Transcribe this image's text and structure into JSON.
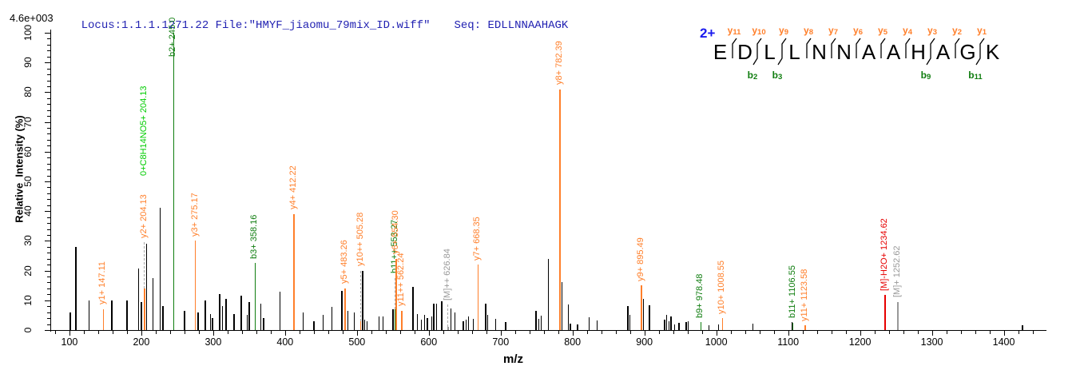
{
  "header": {
    "intensity_scale": "4.6e+003",
    "locus_line": "Locus:1.1.1.1271.22 File:\"HMYF_jiaomu_79mix_ID.wiff\"",
    "seq_line": "Seq: EDLLNNAAHAGK",
    "text_color": "#2222b2"
  },
  "peptide": {
    "charge": "2+",
    "residues": [
      "E",
      "D",
      "L",
      "L",
      "N",
      "N",
      "A",
      "A",
      "H",
      "A",
      "G",
      "K"
    ],
    "y_ion_labels": [
      "y11",
      "y10",
      "y9",
      "y8",
      "y7",
      "y6",
      "y5",
      "y4",
      "y3",
      "y2",
      "y1"
    ],
    "b_ion_labels": {
      "2": "b2",
      "3": "b3",
      "9": "b9",
      "11": "b11"
    },
    "colors": {
      "charge": "#1a1aee",
      "y": "#ff7f2a",
      "b": "#0f7d0f",
      "letter": "#000000"
    }
  },
  "chart_data": {
    "type": "bar",
    "subtype": "ms2-spectrum",
    "title": "",
    "xlabel": "m/z",
    "ylabel": "Relative  Intensity (%)",
    "x_range": [
      74.5,
      1459
    ],
    "y_range": [
      0,
      100
    ],
    "x_major_ticks": [
      100,
      200,
      300,
      400,
      500,
      600,
      700,
      800,
      900,
      1000,
      1100,
      1200,
      1300,
      1400
    ],
    "x_minor_step": 20,
    "y_major_ticks": [
      0,
      10,
      20,
      30,
      40,
      50,
      60,
      70,
      80,
      90,
      100
    ],
    "y_minor_step": 2,
    "grid": false,
    "colors": {
      "y": "#ff7f2a",
      "b": "#0f7d0f",
      "imm": "#00cc00",
      "precursor": "#999999",
      "loss": "#e60000",
      "peak": "#000000",
      "dash": "#aaaaaa"
    },
    "annotated_peaks": [
      {
        "label": "y1+ 147.11",
        "mz": 147.11,
        "intensity": 7,
        "type": "y"
      },
      {
        "label": "y2+ 204.13",
        "mz": 204.13,
        "intensity": 14,
        "dash_to": 29.5,
        "type": "y"
      },
      {
        "label": "0+C8H14NO5+ 204.13",
        "mz": 204.13,
        "intensity": 0,
        "label_at": 52,
        "no_line": true,
        "type": "imm"
      },
      {
        "label": "b2+ 245.0",
        "mz": 245.0,
        "intensity": 100,
        "label_at": 92,
        "type": "b"
      },
      {
        "label": "y3+ 275.17",
        "mz": 275.17,
        "intensity": 30,
        "type": "y"
      },
      {
        "label": "b3+ 358.16",
        "mz": 358.16,
        "intensity": 22.5,
        "type": "b"
      },
      {
        "label": "y4+ 412.22",
        "mz": 412.22,
        "intensity": 39,
        "type": "y"
      },
      {
        "label": "y5+ 483.26",
        "mz": 483.26,
        "intensity": 14,
        "type": "y"
      },
      {
        "label": "y10++ 505.28",
        "mz": 505.28,
        "intensity": 3,
        "dash_to": 20,
        "type": "y"
      },
      {
        "label": "b11++ 553.27",
        "mz": 553.27,
        "intensity": 7,
        "dash_to": 17.5,
        "type": "b"
      },
      {
        "label": "y6+ 554.30",
        "mz": 554.3,
        "intensity": 24,
        "type": "y"
      },
      {
        "label": "y11++ 562.24",
        "mz": 562.24,
        "intensity": 6.5,
        "type": "y"
      },
      {
        "label": "[M]++ 626.84",
        "mz": 626.84,
        "intensity": 1,
        "dash_to": 8.5,
        "type": "precursor"
      },
      {
        "label": "y7+ 668.35",
        "mz": 668.35,
        "intensity": 22,
        "type": "y"
      },
      {
        "label": "y8+ 782.39",
        "mz": 782.39,
        "intensity": 81,
        "type": "y"
      },
      {
        "label": "y9+ 895.49",
        "mz": 895.49,
        "intensity": 15,
        "type": "y"
      },
      {
        "label": "b9+ 978.48",
        "mz": 978.48,
        "intensity": 2.6,
        "type": "b"
      },
      {
        "label": "y10+ 1008.55",
        "mz": 1008.55,
        "intensity": 4,
        "type": "y"
      },
      {
        "label": "b11+ 1106.55",
        "mz": 1106.55,
        "intensity": 2.5,
        "type": "b"
      },
      {
        "label": "y11+ 1123.58",
        "mz": 1123.58,
        "intensity": 1.5,
        "type": "y"
      },
      {
        "label": "[M]-H2O+ 1234.62",
        "mz": 1234.62,
        "intensity": 11.7,
        "type": "loss"
      },
      {
        "label": "[M]+ 1252.62",
        "mz": 1252.62,
        "intensity": 9.4,
        "type": "precursor"
      }
    ],
    "peaks": [
      [
        101,
        6
      ],
      [
        109,
        28
      ],
      [
        127,
        10
      ],
      [
        159,
        10
      ],
      [
        180,
        10
      ],
      [
        196,
        20.7
      ],
      [
        200,
        9.5
      ],
      [
        207,
        29
      ],
      [
        216,
        17.5
      ],
      [
        226,
        41
      ],
      [
        230,
        8
      ],
      [
        260,
        6.5
      ],
      [
        279,
        6
      ],
      [
        289,
        10
      ],
      [
        296,
        5.3
      ],
      [
        299,
        4
      ],
      [
        309,
        12
      ],
      [
        313,
        8
      ],
      [
        318,
        10.5
      ],
      [
        329,
        5.5
      ],
      [
        339,
        11.5
      ],
      [
        347,
        5
      ],
      [
        350,
        9.5
      ],
      [
        366,
        9
      ],
      [
        370,
        4
      ],
      [
        393,
        12.8
      ],
      [
        425,
        6
      ],
      [
        440,
        3
      ],
      [
        453,
        5.2
      ],
      [
        465,
        7.7
      ],
      [
        479,
        13.2
      ],
      [
        487,
        6.5
      ],
      [
        496,
        6
      ],
      [
        508,
        20
      ],
      [
        511,
        3.5
      ],
      [
        514,
        3
      ],
      [
        531,
        4.5
      ],
      [
        536,
        4.5
      ],
      [
        550,
        7
      ],
      [
        578,
        14.5
      ],
      [
        584,
        5.3
      ],
      [
        590,
        3.5
      ],
      [
        594,
        5
      ],
      [
        598,
        4
      ],
      [
        604,
        4.5
      ],
      [
        607,
        9
      ],
      [
        611,
        9
      ],
      [
        618,
        9.8
      ],
      [
        631,
        7.2
      ],
      [
        636,
        6
      ],
      [
        648,
        3
      ],
      [
        652,
        3.4
      ],
      [
        655,
        4.7
      ],
      [
        662,
        3.8
      ],
      [
        679,
        9
      ],
      [
        682,
        5
      ],
      [
        693,
        3.8
      ],
      [
        707,
        2.8
      ],
      [
        749,
        6.5
      ],
      [
        753,
        3.7
      ],
      [
        756,
        4.8
      ],
      [
        766,
        24
      ],
      [
        785,
        16
      ],
      [
        794,
        8.6
      ],
      [
        797,
        2.2
      ],
      [
        807,
        2
      ],
      [
        823,
        4.2
      ],
      [
        834,
        3.3
      ],
      [
        877,
        8
      ],
      [
        880,
        5
      ],
      [
        899,
        10.5
      ],
      [
        907,
        8.4
      ],
      [
        928,
        3.5
      ],
      [
        931,
        5
      ],
      [
        934,
        3
      ],
      [
        937,
        4.5
      ],
      [
        942,
        2
      ],
      [
        948,
        2.4
      ],
      [
        958,
        2.6
      ],
      [
        961,
        3
      ],
      [
        990,
        1.6
      ],
      [
        1003,
        1.8
      ],
      [
        1051,
        2.2
      ],
      [
        1105,
        2.8
      ],
      [
        1426,
        1.5
      ]
    ]
  }
}
